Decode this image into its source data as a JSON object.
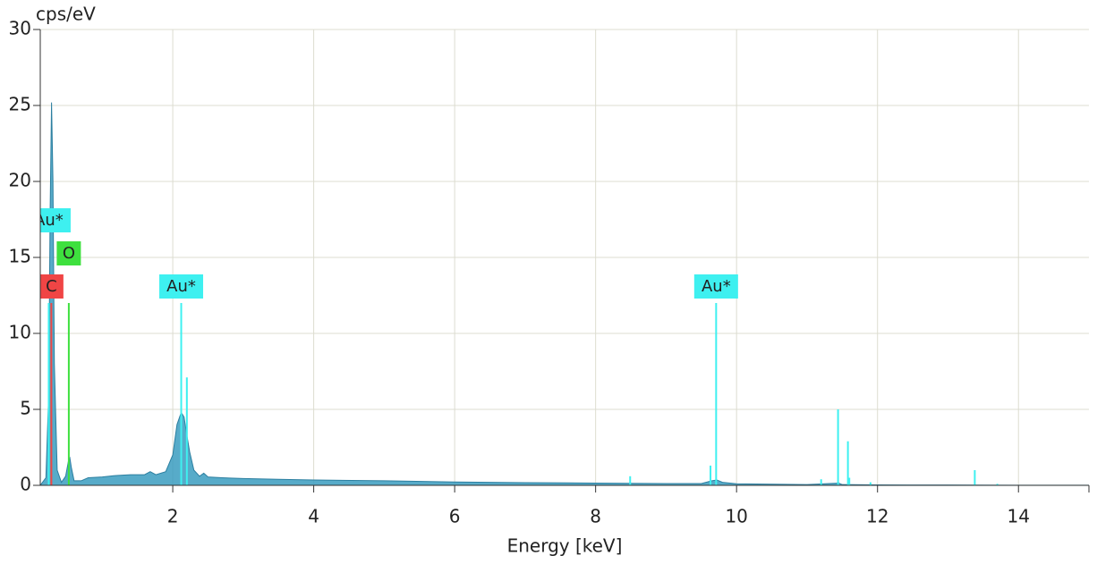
{
  "chart_data": {
    "type": "area",
    "xlabel": "Energy [keV]",
    "ylabel": "cps/eV",
    "xlim": [
      0.12,
      15
    ],
    "ylim": [
      0,
      30
    ],
    "xticks": [
      2,
      4,
      6,
      8,
      10,
      12,
      14
    ],
    "yticks": [
      0,
      5,
      10,
      15,
      20,
      25,
      30
    ],
    "grid": true,
    "series": [
      {
        "color": "#3a9cc0",
        "x": [
          0.12,
          0.2,
          0.24,
          0.26,
          0.28,
          0.3,
          0.32,
          0.36,
          0.42,
          0.48,
          0.52,
          0.54,
          0.56,
          0.6,
          0.7,
          0.8,
          1.0,
          1.2,
          1.4,
          1.6,
          1.68,
          1.76,
          1.9,
          2.0,
          2.06,
          2.12,
          2.16,
          2.2,
          2.24,
          2.3,
          2.38,
          2.44,
          2.5,
          2.7,
          3,
          3.5,
          4,
          5,
          6,
          7,
          8,
          9,
          9.5,
          9.65,
          9.72,
          9.8,
          10,
          11,
          11.45,
          11.5,
          12,
          13,
          14,
          15
        ],
        "values": [
          0,
          0.5,
          6,
          18,
          25.2,
          20,
          8,
          1,
          0.2,
          0.6,
          1.6,
          1.8,
          1.2,
          0.3,
          0.3,
          0.5,
          0.55,
          0.65,
          0.7,
          0.7,
          0.9,
          0.7,
          0.9,
          2,
          4,
          4.8,
          4.5,
          3.3,
          2.2,
          1,
          0.6,
          0.8,
          0.55,
          0.5,
          0.45,
          0.4,
          0.35,
          0.3,
          0.22,
          0.18,
          0.15,
          0.12,
          0.12,
          0.3,
          0.35,
          0.2,
          0.1,
          0.05,
          0.15,
          0.05,
          0.03,
          0.02,
          0.01,
          0.01
        ]
      }
    ],
    "markers": [
      {
        "label": "C",
        "color": "#f04545",
        "lines": [
          {
            "x": 0.277,
            "height": 12
          }
        ]
      },
      {
        "label": "O",
        "color": "#3ee03e",
        "lines": [
          {
            "x": 0.525,
            "height": 12
          }
        ]
      },
      {
        "label": "Au*",
        "color": "#3ef0f0",
        "lines": [
          {
            "x": 0.24,
            "height": 12
          }
        ]
      },
      {
        "label": "Au*",
        "color": "#3ef0f0",
        "lines": [
          {
            "x": 2.12,
            "height": 12
          },
          {
            "x": 2.2,
            "height": 7.1
          }
        ]
      },
      {
        "label": "Au*",
        "color": "#3ef0f0",
        "lines": [
          {
            "x": 9.71,
            "height": 12
          },
          {
            "x": 9.63,
            "height": 1.3
          },
          {
            "x": 8.49,
            "height": 0.6
          },
          {
            "x": 11.44,
            "height": 5
          },
          {
            "x": 11.58,
            "height": 2.9
          },
          {
            "x": 11.6,
            "height": 0.5
          },
          {
            "x": 11.2,
            "height": 0.4
          },
          {
            "x": 11.9,
            "height": 0.2
          },
          {
            "x": 13.38,
            "height": 1
          },
          {
            "x": 13.7,
            "height": 0.1
          }
        ]
      }
    ]
  }
}
